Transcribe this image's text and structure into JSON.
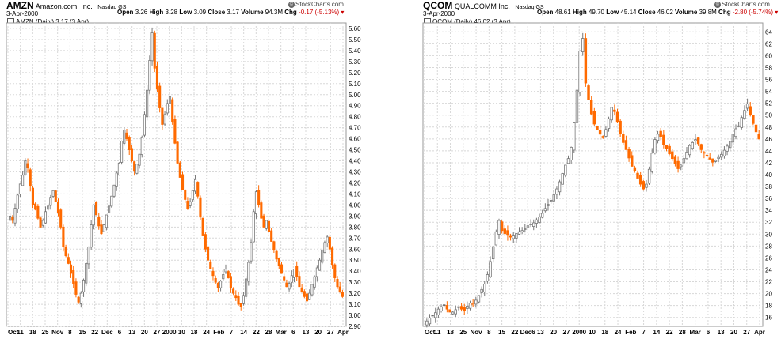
{
  "chart_data": [
    {
      "type": "candlestick",
      "symbol": "AMZN",
      "company": "Amazon.com, Inc.",
      "exchange": "Nasdaq GS",
      "date": "3-Apr-2000",
      "quote": {
        "open_label": "Open",
        "open": "3.26",
        "high_label": "High",
        "high": "3.28",
        "low_label": "Low",
        "low": "3.09",
        "close_label": "Close",
        "close": "3.17",
        "volume_label": "Volume",
        "volume": "94.3M",
        "chg_label": "Chg",
        "chg": "-0.17 (-5.13%)"
      },
      "brand": "StockCharts.com",
      "legend": "AMZN (Daily) 3.17 (3 Apr)",
      "ylim": [
        2.9,
        5.65
      ],
      "yticks": [
        "5.60",
        "5.50",
        "5.40",
        "5.30",
        "5.20",
        "5.10",
        "5.00",
        "4.90",
        "4.80",
        "4.70",
        "4.60",
        "4.50",
        "4.40",
        "4.30",
        "4.20",
        "4.10",
        "4.00",
        "3.90",
        "3.80",
        "3.70",
        "3.60",
        "3.50",
        "3.40",
        "3.30",
        "3.20",
        "3.10",
        "3.00",
        "2.90"
      ],
      "xticks": [
        "Oct",
        "11",
        "18",
        "25",
        "Nov",
        "8",
        "15",
        "22",
        "Dec",
        "6",
        "13",
        "20",
        "27",
        "2000",
        "10",
        "18",
        "24",
        "Feb",
        "7",
        "14",
        "22",
        "28",
        "Mar",
        "6",
        "13",
        "20",
        "27",
        "Apr"
      ],
      "closes": [
        3.9,
        3.86,
        3.97,
        4.09,
        4.19,
        4.27,
        4.4,
        4.34,
        4.17,
        4.0,
        3.96,
        3.88,
        3.8,
        3.86,
        3.94,
        3.99,
        4.07,
        4.13,
        4.03,
        3.93,
        3.8,
        3.62,
        3.54,
        3.47,
        3.38,
        3.29,
        3.19,
        3.12,
        3.2,
        3.32,
        3.47,
        3.62,
        3.82,
        4.0,
        3.91,
        3.81,
        3.74,
        3.82,
        3.91,
        3.99,
        4.08,
        4.18,
        4.29,
        4.38,
        4.58,
        4.68,
        4.6,
        4.5,
        4.4,
        4.31,
        4.37,
        4.46,
        4.61,
        4.82,
        5.04,
        5.31,
        5.56,
        5.24,
        5.05,
        4.88,
        4.73,
        4.82,
        4.92,
        4.98,
        4.75,
        4.56,
        4.38,
        4.25,
        4.14,
        4.05,
        3.97,
        4.03,
        4.13,
        4.23,
        4.08,
        3.89,
        3.72,
        3.6,
        3.5,
        3.42,
        3.36,
        3.3,
        3.25,
        3.31,
        3.37,
        3.42,
        3.34,
        3.25,
        3.2,
        3.16,
        3.1,
        3.08,
        3.18,
        3.33,
        3.48,
        3.66,
        3.94,
        4.12,
        4.0,
        3.88,
        3.8,
        3.86,
        3.76,
        3.67,
        3.59,
        3.51,
        3.45,
        3.38,
        3.32,
        3.26,
        3.29,
        3.36,
        3.42,
        3.35,
        3.26,
        3.21,
        3.17,
        3.13,
        3.2,
        3.28,
        3.35,
        3.43,
        3.5,
        3.59,
        3.66,
        3.71,
        3.6,
        3.46,
        3.34,
        3.26,
        3.21,
        3.17
      ]
    },
    {
      "type": "candlestick",
      "symbol": "QCOM",
      "company": "QUALCOMM Inc.",
      "exchange": "Nasdaq GS",
      "date": "3-Apr-2000",
      "quote": {
        "open_label": "Open",
        "open": "48.61",
        "high_label": "High",
        "high": "49.70",
        "low_label": "Low",
        "low": "45.14",
        "close_label": "Close",
        "close": "46.02",
        "volume_label": "Volume",
        "volume": "39.8M",
        "chg_label": "Chg",
        "chg": "-2.80 (-5.74%)"
      },
      "brand": "StockCharts.com",
      "legend": "QCOM (Daily) 46.02 (3 Apr)",
      "ylim": [
        14.5,
        65.5
      ],
      "yticks": [
        "64",
        "62",
        "60",
        "58",
        "56",
        "54",
        "52",
        "50",
        "48",
        "46",
        "44",
        "42",
        "40",
        "38",
        "36",
        "34",
        "32",
        "30",
        "28",
        "26",
        "24",
        "22",
        "20",
        "18",
        "16"
      ],
      "xticks": [
        "Oct",
        "11",
        "18",
        "25",
        "Nov",
        "8",
        "15",
        "22",
        "Dec6",
        "13",
        "20",
        "27",
        "2000",
        "10",
        "18",
        "24",
        "Feb",
        "7",
        "14",
        "22",
        "28",
        "Mar",
        "6",
        "13",
        "20",
        "27",
        "Apr"
      ],
      "closes": [
        15.4,
        15.9,
        16.3,
        16.8,
        17.4,
        17.8,
        18.1,
        17.4,
        16.9,
        16.9,
        17.3,
        17.8,
        17.4,
        17.2,
        17.9,
        18.4,
        18.3,
        18.9,
        19.7,
        20.7,
        21.6,
        23.2,
        25.4,
        27.9,
        30.4,
        32.3,
        30.6,
        30.1,
        29.8,
        29.5,
        29.7,
        30.1,
        30.4,
        30.6,
        30.9,
        31.4,
        31.7,
        31.9,
        32.4,
        32.9,
        33.5,
        34.3,
        35.0,
        35.7,
        36.6,
        37.6,
        38.8,
        40.2,
        41.6,
        42.7,
        44.6,
        48.7,
        54.2,
        60.8,
        62.9,
        55.4,
        52.6,
        50.2,
        48.5,
        47.6,
        46.8,
        46.2,
        47.6,
        49.4,
        51.3,
        50.6,
        48.8,
        46.9,
        45.4,
        44.2,
        42.8,
        41.4,
        40.6,
        39.4,
        38.4,
        37.6,
        38.4,
        40.9,
        43.6,
        45.9,
        46.8,
        46.3,
        45.1,
        44.4,
        43.5,
        42.7,
        41.8,
        41.0,
        41.6,
        42.7,
        43.8,
        44.9,
        45.4,
        45.9,
        45.2,
        44.2,
        43.6,
        43.1,
        42.6,
        42.1,
        42.4,
        42.9,
        43.4,
        44.1,
        44.8,
        45.6,
        46.8,
        47.7,
        48.2,
        49.6,
        50.8,
        51.9,
        50.1,
        48.6,
        47.2,
        46.0
      ]
    }
  ]
}
